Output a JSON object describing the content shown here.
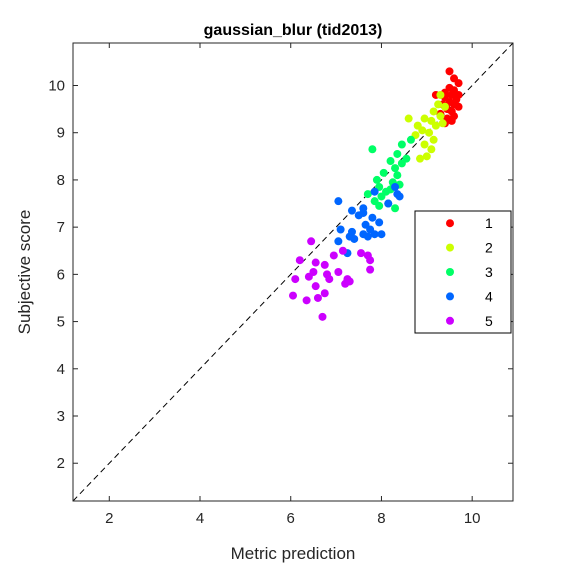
{
  "chart_data": {
    "type": "scatter",
    "title": "gaussian_blur (tid2013)",
    "xlabel": "Metric prediction",
    "ylabel": "Subjective score",
    "xlim": [
      1.2,
      10.9
    ],
    "ylim": [
      1.2,
      10.9
    ],
    "xticks": [
      2,
      4,
      6,
      8,
      10
    ],
    "yticks": [
      2,
      3,
      4,
      5,
      6,
      7,
      8,
      9,
      10
    ],
    "grid": false,
    "box": true,
    "reference_line": "y = x dashed",
    "legend_position": "right",
    "series": [
      {
        "name": "1",
        "color": "#ff0000",
        "points": [
          [
            9.5,
            10.3
          ],
          [
            9.6,
            10.15
          ],
          [
            9.7,
            10.05
          ],
          [
            9.5,
            9.95
          ],
          [
            9.6,
            9.9
          ],
          [
            9.4,
            9.85
          ],
          [
            9.55,
            9.8
          ],
          [
            9.7,
            9.8
          ],
          [
            9.2,
            9.8
          ],
          [
            9.4,
            9.75
          ],
          [
            9.65,
            9.7
          ],
          [
            9.5,
            9.65
          ],
          [
            9.35,
            9.6
          ],
          [
            9.6,
            9.6
          ],
          [
            9.7,
            9.55
          ],
          [
            9.45,
            9.5
          ],
          [
            9.55,
            9.45
          ],
          [
            9.3,
            9.4
          ],
          [
            9.6,
            9.35
          ],
          [
            9.45,
            9.3
          ],
          [
            9.55,
            9.25
          ],
          [
            9.4,
            9.2
          ]
        ]
      },
      {
        "name": "2",
        "color": "#ccff00",
        "points": [
          [
            9.3,
            9.8
          ],
          [
            9.25,
            9.6
          ],
          [
            9.4,
            9.55
          ],
          [
            9.15,
            9.45
          ],
          [
            9.3,
            9.35
          ],
          [
            8.95,
            9.3
          ],
          [
            9.1,
            9.25
          ],
          [
            9.35,
            9.2
          ],
          [
            8.8,
            9.15
          ],
          [
            9.2,
            9.15
          ],
          [
            8.9,
            9.05
          ],
          [
            9.05,
            9.0
          ],
          [
            8.75,
            8.95
          ],
          [
            9.15,
            8.85
          ],
          [
            8.95,
            8.75
          ],
          [
            9.1,
            8.65
          ],
          [
            9.0,
            8.5
          ],
          [
            8.85,
            8.45
          ],
          [
            8.6,
            9.3
          ]
        ]
      },
      {
        "name": "3",
        "color": "#00ff66",
        "points": [
          [
            8.65,
            8.85
          ],
          [
            8.45,
            8.75
          ],
          [
            8.35,
            8.55
          ],
          [
            8.55,
            8.45
          ],
          [
            8.2,
            8.4
          ],
          [
            8.45,
            8.35
          ],
          [
            7.8,
            8.65
          ],
          [
            8.3,
            8.25
          ],
          [
            8.05,
            8.15
          ],
          [
            8.35,
            8.1
          ],
          [
            7.9,
            8.0
          ],
          [
            8.25,
            7.95
          ],
          [
            8.4,
            7.9
          ],
          [
            7.95,
            7.85
          ],
          [
            8.2,
            7.8
          ],
          [
            8.1,
            7.75
          ],
          [
            7.7,
            7.7
          ],
          [
            8.0,
            7.65
          ],
          [
            7.85,
            7.55
          ],
          [
            8.15,
            7.5
          ],
          [
            7.95,
            7.45
          ],
          [
            8.3,
            7.4
          ]
        ]
      },
      {
        "name": "4",
        "color": "#0066ff",
        "points": [
          [
            8.3,
            7.85
          ],
          [
            7.85,
            7.75
          ],
          [
            8.35,
            7.7
          ],
          [
            8.4,
            7.65
          ],
          [
            7.05,
            7.55
          ],
          [
            8.15,
            7.5
          ],
          [
            7.6,
            7.4
          ],
          [
            7.35,
            7.35
          ],
          [
            7.6,
            7.3
          ],
          [
            7.5,
            7.25
          ],
          [
            7.8,
            7.2
          ],
          [
            7.95,
            7.1
          ],
          [
            7.65,
            7.05
          ],
          [
            7.75,
            6.95
          ],
          [
            7.1,
            6.95
          ],
          [
            7.35,
            6.9
          ],
          [
            7.6,
            6.85
          ],
          [
            7.85,
            6.85
          ],
          [
            8.0,
            6.85
          ],
          [
            7.3,
            6.8
          ],
          [
            7.7,
            6.8
          ],
          [
            7.4,
            6.75
          ],
          [
            7.05,
            6.7
          ],
          [
            7.25,
            6.45
          ]
        ]
      },
      {
        "name": "5",
        "color": "#cc00ff",
        "points": [
          [
            6.45,
            6.7
          ],
          [
            6.2,
            6.3
          ],
          [
            6.55,
            6.25
          ],
          [
            6.95,
            6.4
          ],
          [
            7.15,
            6.5
          ],
          [
            6.5,
            6.05
          ],
          [
            6.75,
            6.2
          ],
          [
            7.55,
            6.45
          ],
          [
            7.7,
            6.4
          ],
          [
            7.75,
            6.3
          ],
          [
            6.1,
            5.9
          ],
          [
            6.4,
            5.95
          ],
          [
            6.8,
            6.0
          ],
          [
            7.05,
            6.05
          ],
          [
            7.75,
            6.1
          ],
          [
            6.85,
            5.9
          ],
          [
            7.25,
            5.9
          ],
          [
            7.3,
            5.85
          ],
          [
            6.55,
            5.75
          ],
          [
            6.75,
            5.6
          ],
          [
            7.2,
            5.8
          ],
          [
            6.05,
            5.55
          ],
          [
            6.35,
            5.45
          ],
          [
            6.6,
            5.5
          ],
          [
            6.7,
            5.1
          ]
        ]
      }
    ]
  }
}
